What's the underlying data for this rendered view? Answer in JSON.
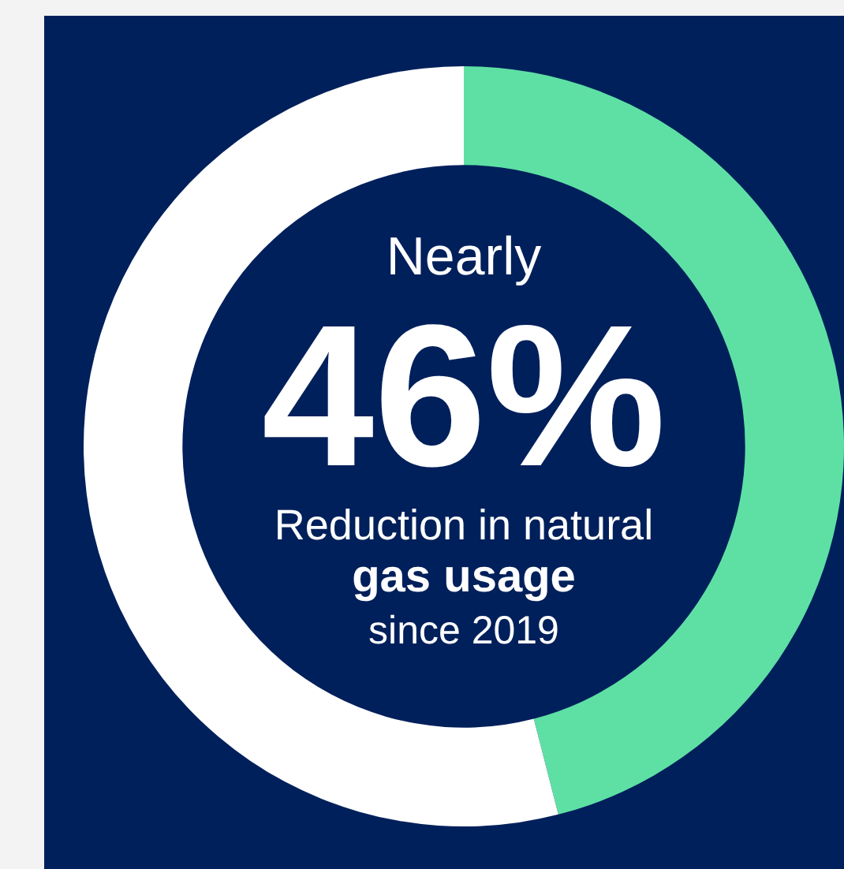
{
  "chart_data": {
    "type": "donut",
    "categories": [
      null,
      null
    ],
    "values": [
      46,
      54
    ],
    "colors": [
      "#5ee0a5",
      "#ffffff"
    ],
    "value_labels": [
      "46%",
      null
    ],
    "annotations": [
      "Nearly",
      "Reduction in natural",
      "gas usage",
      "since 2019"
    ],
    "legend": false
  }
}
